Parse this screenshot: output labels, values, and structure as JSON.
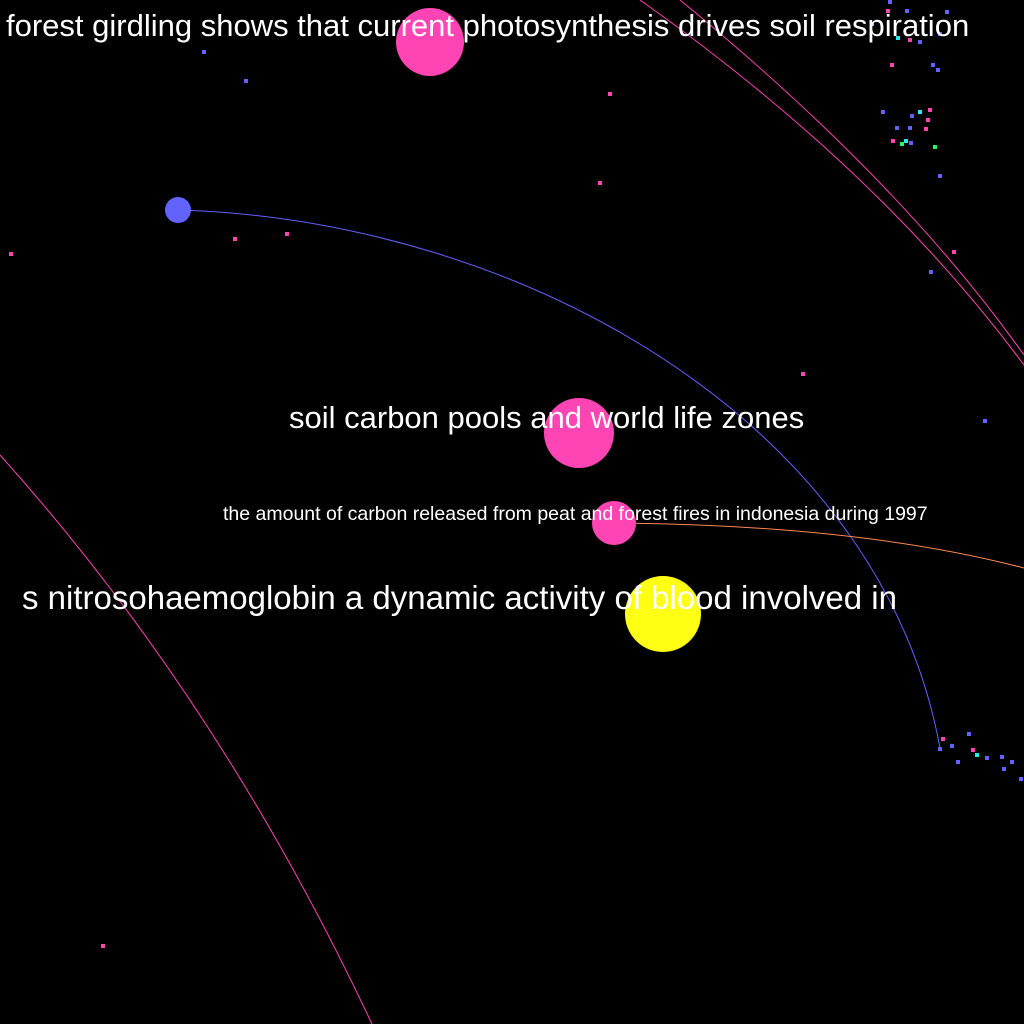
{
  "graph": {
    "background": "#000000",
    "colors": {
      "pink": "#ff44b4",
      "blue": "#6262ff",
      "yellow": "#ffff14",
      "cyan": "#22eeee",
      "green": "#22ff66",
      "orange": "#ff8855"
    },
    "labels": [
      {
        "id": "label-forest-girdling",
        "text": "forest girdling shows that current photosynthesis drives soil respiration"
      },
      {
        "id": "label-soil-carbon-pools",
        "text": "soil carbon pools and world life zones"
      },
      {
        "id": "label-carbon-released",
        "text": "the amount of carbon released from peat and forest fires in indonesia during 1997"
      },
      {
        "id": "label-nitrosohaemoglobin",
        "text": "s nitrosohaemoglobin a dynamic activity of blood involved in"
      }
    ]
  }
}
